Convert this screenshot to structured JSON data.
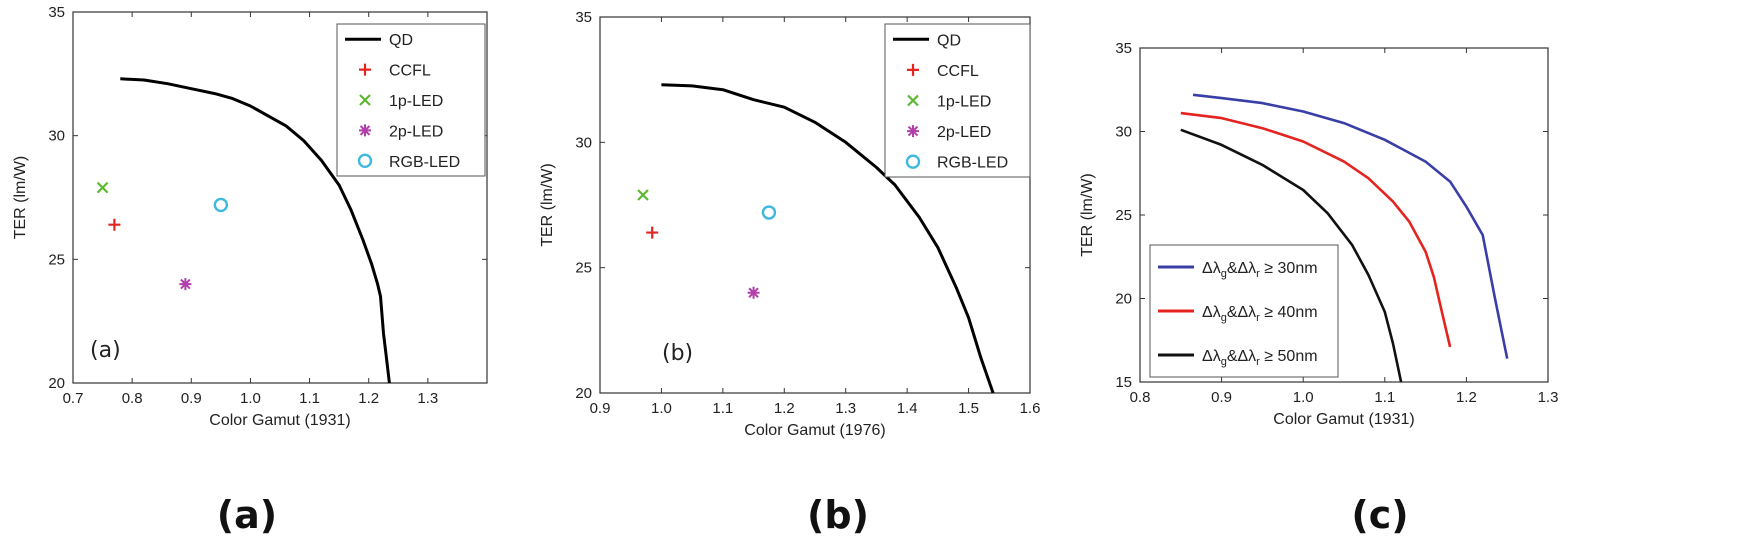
{
  "chart_data": [
    {
      "type": "scatter",
      "panel": "(a)",
      "inner_label": "(a)",
      "xlabel": "Color Gamut (1931)",
      "ylabel": "TER (lm/W)",
      "xlim": [
        0.7,
        1.4
      ],
      "ylim": [
        20,
        35
      ],
      "xticks": [
        0.7,
        0.8,
        0.9,
        1.0,
        1.1,
        1.2,
        1.3
      ],
      "xtick_labels": [
        "0.7",
        "0.8",
        "0.9",
        "1.0",
        "1.1",
        "1.2",
        "1.3"
      ],
      "yticks": [
        20,
        25,
        30,
        35
      ],
      "ytick_labels": [
        "20",
        "25",
        "30",
        "35"
      ],
      "legend_placement": "top-right",
      "series": [
        {
          "name": "QD",
          "kind": "line",
          "color": "#000000",
          "x": [
            0.78,
            0.82,
            0.86,
            0.9,
            0.94,
            0.97,
            1.0,
            1.03,
            1.06,
            1.09,
            1.12,
            1.15,
            1.17,
            1.19,
            1.205,
            1.215,
            1.22,
            1.225,
            1.23,
            1.235
          ],
          "y": [
            32.3,
            32.25,
            32.1,
            31.9,
            31.7,
            31.5,
            31.2,
            30.8,
            30.4,
            29.8,
            29.0,
            28.0,
            27.0,
            25.8,
            24.8,
            24.0,
            23.5,
            22.0,
            21.0,
            20.0
          ]
        },
        {
          "name": "CCFL",
          "kind": "marker",
          "marker": "plus",
          "color": "#e52420",
          "x": [
            0.77
          ],
          "y": [
            26.4
          ]
        },
        {
          "name": "1p-LED",
          "kind": "marker",
          "marker": "x",
          "color": "#5cb82f",
          "x": [
            0.75
          ],
          "y": [
            27.9
          ]
        },
        {
          "name": "2p-LED",
          "kind": "marker",
          "marker": "star",
          "color": "#b13eaa",
          "x": [
            0.89
          ],
          "y": [
            24.0
          ]
        },
        {
          "name": "RGB-LED",
          "kind": "marker",
          "marker": "circle",
          "color": "#3fb8e0",
          "x": [
            0.95
          ],
          "y": [
            27.2
          ]
        }
      ]
    },
    {
      "type": "scatter",
      "panel": "(b)",
      "inner_label": "(b)",
      "xlabel": "Color Gamut (1976)",
      "ylabel": "TER (lm/W)",
      "xlim": [
        0.9,
        1.6
      ],
      "ylim": [
        20,
        35
      ],
      "xticks": [
        0.9,
        1.0,
        1.1,
        1.2,
        1.3,
        1.4,
        1.5,
        1.6
      ],
      "xtick_labels": [
        "0.9",
        "1.0",
        "1.1",
        "1.2",
        "1.3",
        "1.4",
        "1.5",
        "1.6"
      ],
      "yticks": [
        20,
        25,
        30,
        35
      ],
      "ytick_labels": [
        "20",
        "25",
        "30",
        "35"
      ],
      "legend_placement": "top-right",
      "series": [
        {
          "name": "QD",
          "kind": "line",
          "color": "#000000",
          "x": [
            1.0,
            1.05,
            1.1,
            1.15,
            1.2,
            1.25,
            1.3,
            1.35,
            1.38,
            1.42,
            1.45,
            1.48,
            1.5,
            1.52,
            1.54
          ],
          "y": [
            32.3,
            32.25,
            32.1,
            31.7,
            31.4,
            30.8,
            30.0,
            29.0,
            28.3,
            27.0,
            25.8,
            24.2,
            23.0,
            21.4,
            20.0
          ]
        },
        {
          "name": "CCFL",
          "kind": "marker",
          "marker": "plus",
          "color": "#e52420",
          "x": [
            0.985
          ],
          "y": [
            26.4
          ]
        },
        {
          "name": "1p-LED",
          "kind": "marker",
          "marker": "x",
          "color": "#5cb82f",
          "x": [
            0.97
          ],
          "y": [
            27.9
          ]
        },
        {
          "name": "2p-LED",
          "kind": "marker",
          "marker": "star",
          "color": "#b13eaa",
          "x": [
            1.15
          ],
          "y": [
            24.0
          ]
        },
        {
          "name": "RGB-LED",
          "kind": "marker",
          "marker": "circle",
          "color": "#3fb8e0",
          "x": [
            1.175
          ],
          "y": [
            27.2
          ]
        }
      ]
    },
    {
      "type": "line",
      "panel": "(c)",
      "xlabel": "Color Gamut  (1931)",
      "ylabel": "TER (lm/W)",
      "xlim": [
        0.8,
        1.3
      ],
      "ylim": [
        15,
        35
      ],
      "xticks": [
        0.8,
        0.9,
        1.0,
        1.1,
        1.2,
        1.3
      ],
      "xtick_labels": [
        "0.8",
        "0.9",
        "1.0",
        "1.1",
        "1.2",
        "1.3"
      ],
      "yticks": [
        15,
        20,
        25,
        30,
        35
      ],
      "ytick_labels": [
        "15",
        "20",
        "25",
        "30",
        "35"
      ],
      "legend_placement": "bottom-left",
      "series": [
        {
          "name": "Δλg&Δλr ≥ 30nm",
          "sub_g": "g",
          "sub_r": "r",
          "suffix": " ≥ 30nm",
          "color": "#3a3fa8",
          "x": [
            0.865,
            0.9,
            0.95,
            1.0,
            1.05,
            1.1,
            1.15,
            1.18,
            1.2,
            1.22,
            1.235,
            1.25
          ],
          "y": [
            32.2,
            32.0,
            31.7,
            31.2,
            30.5,
            29.5,
            28.2,
            27.0,
            25.5,
            23.8,
            20.0,
            16.4
          ]
        },
        {
          "name": "Δλg&Δλr ≥ 40nm",
          "sub_g": "g",
          "sub_r": "r",
          "suffix": " ≥ 40nm",
          "color": "#e52420",
          "x": [
            0.85,
            0.9,
            0.95,
            1.0,
            1.05,
            1.08,
            1.11,
            1.13,
            1.15,
            1.16,
            1.17,
            1.18
          ],
          "y": [
            31.1,
            30.8,
            30.2,
            29.4,
            28.2,
            27.2,
            25.8,
            24.6,
            22.8,
            21.3,
            19.2,
            17.1
          ]
        },
        {
          "name": "Δλg&Δλr ≥ 50nm",
          "sub_g": "g",
          "sub_r": "r",
          "suffix": " ≥ 50nm",
          "color": "#111111",
          "x": [
            0.85,
            0.9,
            0.95,
            1.0,
            1.03,
            1.06,
            1.08,
            1.1,
            1.11,
            1.12
          ],
          "y": [
            30.1,
            29.2,
            28.0,
            26.5,
            25.1,
            23.2,
            21.4,
            19.2,
            17.3,
            15.0
          ]
        }
      ]
    }
  ],
  "captions": [
    "(a)",
    "(b)",
    "(c)"
  ]
}
